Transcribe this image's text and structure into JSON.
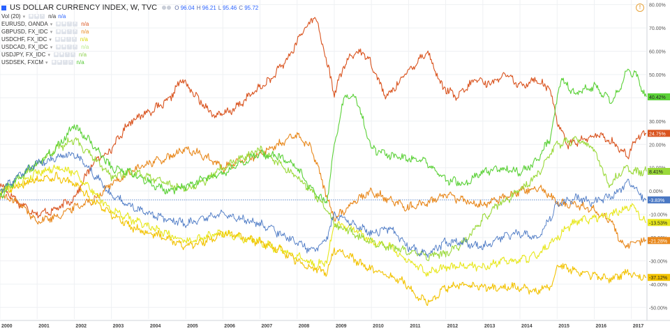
{
  "header": {
    "title": "US DOLLAR CURRENCY INDEX, W, TVC",
    "ohlc": [
      {
        "k": "O",
        "v": "96.04"
      },
      {
        "k": "H",
        "v": "96.21"
      },
      {
        "k": "L",
        "v": "95.46"
      },
      {
        "k": "C",
        "v": "95.72"
      }
    ],
    "vol_label": "Vol (20)",
    "vol_values": [
      "n/a",
      "n/a"
    ],
    "controls": [
      "eye-icon",
      "gear-icon",
      "close-icon"
    ]
  },
  "legend": [
    {
      "name": "EURUSD, OANDA",
      "value": "n/a",
      "color": "#d9531e"
    },
    {
      "name": "GBPUSD, FX_IDC",
      "value": "n/a",
      "color": "#e8871a"
    },
    {
      "name": "USDCHF, FX_IDC",
      "value": "n/a",
      "color": "#d8d800"
    },
    {
      "name": "USDCAD, FX_IDC",
      "value": "n/a",
      "color": "#b8e986"
    },
    {
      "name": "USDJPY, FX_IDC",
      "value": "n/a",
      "color": "#8fd14f"
    },
    {
      "name": "USDSEK, FXCM",
      "value": "n/a",
      "color": "#55c934"
    }
  ],
  "chart_data": {
    "type": "line",
    "title": "US DOLLAR CURRENCY INDEX, W, TVC",
    "xlim": [
      2000.0,
      2017.4
    ],
    "ylim": [
      -55,
      82
    ],
    "x_ticks": [
      "2000",
      "2001",
      "2002",
      "2003",
      "2004",
      "2005",
      "2006",
      "2007",
      "2008",
      "2009",
      "2010",
      "2011",
      "2012",
      "2013",
      "2014",
      "2015",
      "2016",
      "2017"
    ],
    "y_ticks": [
      "80.00%",
      "70.00%",
      "60.00%",
      "50.00%",
      "40.00%",
      "30.00%",
      "20.00%",
      "10.00%",
      "0.00%",
      "-10.00%",
      "-20.00%",
      "-30.00%",
      "-40.00%",
      "-50.00%"
    ],
    "y_tick_values": [
      80,
      70,
      60,
      50,
      40,
      30,
      20,
      10,
      0,
      -10,
      -20,
      -30,
      -40,
      -50
    ],
    "baseline": -3.83,
    "grid": true,
    "series": [
      {
        "name": "EURUSD, OANDA",
        "color": "#d9531e",
        "last_label": "24.75%",
        "x": [
          2000.0,
          2000.5,
          2001.0,
          2001.5,
          2002.0,
          2002.5,
          2003.0,
          2003.5,
          2004.0,
          2004.5,
          2004.9,
          2005.3,
          2005.8,
          2006.3,
          2006.8,
          2007.3,
          2007.8,
          2008.2,
          2008.5,
          2008.8,
          2009.0,
          2009.3,
          2009.6,
          2009.9,
          2010.4,
          2010.8,
          2011.2,
          2011.5,
          2011.9,
          2012.3,
          2012.8,
          2013.2,
          2013.6,
          2014.0,
          2014.4,
          2014.8,
          2015.0,
          2015.3,
          2015.7,
          2016.1,
          2016.5,
          2016.9,
          2017.2,
          2017.4
        ],
        "y": [
          3,
          -5,
          -10,
          -8,
          -3,
          12,
          18,
          30,
          34,
          38,
          48,
          40,
          32,
          35,
          42,
          48,
          58,
          70,
          75,
          55,
          42,
          55,
          60,
          58,
          40,
          48,
          55,
          60,
          45,
          40,
          48,
          46,
          50,
          45,
          48,
          44,
          30,
          20,
          22,
          24,
          21,
          15,
          24,
          24.75
        ]
      },
      {
        "name": "GBPUSD, FX_IDC",
        "color": "#e8871a",
        "last_label": "-21.28%",
        "x": [
          2000.0,
          2000.5,
          2001.0,
          2001.5,
          2002.0,
          2002.5,
          2003.0,
          2003.5,
          2004.0,
          2004.5,
          2005.0,
          2005.5,
          2006.0,
          2006.5,
          2007.0,
          2007.5,
          2008.0,
          2008.4,
          2008.7,
          2009.0,
          2009.5,
          2010.0,
          2010.5,
          2011.0,
          2011.5,
          2012.0,
          2012.5,
          2013.0,
          2013.5,
          2014.0,
          2014.5,
          2015.0,
          2015.5,
          2016.0,
          2016.4,
          2016.8,
          2017.0,
          2017.4
        ],
        "y": [
          -2,
          -5,
          -13,
          -11,
          -7,
          -4,
          3,
          8,
          12,
          14,
          18,
          15,
          10,
          13,
          16,
          20,
          24,
          18,
          3,
          -12,
          -5,
          0,
          -4,
          -7,
          -5,
          -2,
          -4,
          -6,
          -3,
          0,
          2,
          -5,
          -6,
          -8,
          -12,
          -24,
          -22,
          -21.28
        ]
      },
      {
        "name": "USDCHF, FX_IDC",
        "color": "#e7e71a",
        "last_label": "-13.53%",
        "x": [
          2000.0,
          2000.5,
          2001.0,
          2001.5,
          2002.0,
          2002.5,
          2003.0,
          2003.5,
          2004.0,
          2004.5,
          2005.0,
          2005.5,
          2006.0,
          2006.5,
          2007.0,
          2007.5,
          2008.0,
          2008.5,
          2008.8,
          2009.0,
          2009.5,
          2010.0,
          2010.5,
          2011.0,
          2011.5,
          2012.0,
          2012.5,
          2013.0,
          2013.5,
          2014.0,
          2014.5,
          2015.0,
          2015.5,
          2016.0,
          2016.5,
          2017.0,
          2017.4
        ],
        "y": [
          0,
          3,
          8,
          10,
          8,
          0,
          -8,
          -12,
          -15,
          -18,
          -22,
          -20,
          -18,
          -20,
          -22,
          -25,
          -28,
          -32,
          -30,
          -14,
          -16,
          -22,
          -24,
          -30,
          -35,
          -33,
          -32,
          -33,
          -30,
          -30,
          -27,
          -20,
          -13,
          -12,
          -10,
          -6,
          -13.53
        ]
      },
      {
        "name": "USDCAD, FX_IDC",
        "color": "#f2c200",
        "last_label": "-37.12%",
        "x": [
          2000.0,
          2000.5,
          2001.0,
          2001.5,
          2002.0,
          2002.5,
          2003.0,
          2003.5,
          2004.0,
          2004.5,
          2005.0,
          2005.5,
          2006.0,
          2006.5,
          2007.0,
          2007.5,
          2008.0,
          2008.4,
          2008.8,
          2009.0,
          2009.4,
          2009.8,
          2010.3,
          2010.8,
          2011.2,
          2011.6,
          2011.9,
          2012.4,
          2012.9,
          2013.4,
          2013.9,
          2014.4,
          2014.9,
          2015.0,
          2015.4,
          2015.9,
          2016.4,
          2016.9,
          2017.4
        ],
        "y": [
          0,
          2,
          5,
          6,
          3,
          -4,
          -10,
          -15,
          -18,
          -20,
          -24,
          -22,
          -18,
          -20,
          -22,
          -25,
          -30,
          -33,
          -35,
          -25,
          -28,
          -32,
          -36,
          -38,
          -45,
          -48,
          -42,
          -40,
          -41,
          -42,
          -41,
          -43,
          -40,
          -32,
          -34,
          -36,
          -38,
          -35,
          -37.12
        ]
      },
      {
        "name": "USDJPY, FX_IDC",
        "color": "#9ad93a",
        "last_label": "8.41%",
        "x": [
          2000.0,
          2000.5,
          2001.0,
          2001.5,
          2002.0,
          2002.5,
          2003.0,
          2003.5,
          2004.0,
          2004.5,
          2005.0,
          2005.5,
          2006.0,
          2006.5,
          2007.0,
          2007.5,
          2008.0,
          2008.4,
          2008.8,
          2009.0,
          2009.5,
          2010.0,
          2010.5,
          2011.0,
          2011.5,
          2012.0,
          2012.5,
          2013.0,
          2013.5,
          2014.0,
          2014.5,
          2015.0,
          2015.5,
          2016.0,
          2016.4,
          2016.8,
          2017.0,
          2017.4
        ],
        "y": [
          0,
          5,
          12,
          18,
          22,
          15,
          6,
          8,
          6,
          3,
          1,
          4,
          10,
          14,
          18,
          12,
          6,
          0,
          -8,
          -14,
          -18,
          -22,
          -24,
          -26,
          -28,
          -27,
          -22,
          -12,
          -5,
          0,
          8,
          20,
          22,
          18,
          2,
          10,
          8,
          8.41
        ]
      },
      {
        "name": "USDSEK, FXCM",
        "color": "#5bd138",
        "last_label": "40.42%",
        "x": [
          2000.0,
          2000.5,
          2001.0,
          2001.5,
          2002.0,
          2002.5,
          2003.0,
          2003.5,
          2004.0,
          2004.5,
          2005.0,
          2005.5,
          2006.0,
          2006.5,
          2007.0,
          2007.5,
          2008.0,
          2008.4,
          2008.8,
          2009.0,
          2009.3,
          2009.6,
          2010.0,
          2010.5,
          2011.0,
          2011.5,
          2012.0,
          2012.5,
          2013.0,
          2013.5,
          2014.0,
          2014.4,
          2014.8,
          2015.1,
          2015.5,
          2016.0,
          2016.5,
          2016.9,
          2017.1,
          2017.4
        ],
        "y": [
          -2,
          6,
          12,
          18,
          28,
          20,
          10,
          8,
          4,
          0,
          2,
          5,
          8,
          12,
          16,
          15,
          10,
          0,
          -5,
          20,
          42,
          40,
          18,
          15,
          14,
          12,
          5,
          3,
          8,
          10,
          8,
          12,
          22,
          48,
          42,
          45,
          38,
          52,
          50,
          40.42
        ]
      },
      {
        "name": "US DOLLAR CURRENCY INDEX",
        "color": "#4a78c4",
        "last_label": "-3.83%",
        "x": [
          2000.0,
          2000.5,
          2001.0,
          2001.5,
          2002.0,
          2002.5,
          2003.0,
          2003.5,
          2004.0,
          2004.5,
          2005.0,
          2005.5,
          2006.0,
          2006.5,
          2007.0,
          2007.5,
          2008.0,
          2008.4,
          2008.8,
          2009.0,
          2009.5,
          2010.0,
          2010.5,
          2011.0,
          2011.5,
          2012.0,
          2012.5,
          2013.0,
          2013.5,
          2014.0,
          2014.5,
          2015.0,
          2015.5,
          2016.0,
          2016.5,
          2016.9,
          2017.1,
          2017.4
        ],
        "y": [
          0,
          6,
          12,
          14,
          16,
          8,
          -2,
          -6,
          -10,
          -12,
          -14,
          -12,
          -10,
          -12,
          -14,
          -18,
          -22,
          -26,
          -20,
          -10,
          -14,
          -18,
          -16,
          -24,
          -27,
          -22,
          -22,
          -24,
          -20,
          -18,
          -20,
          -6,
          -3,
          -5,
          -2,
          4,
          1,
          -3.83
        ]
      }
    ]
  }
}
